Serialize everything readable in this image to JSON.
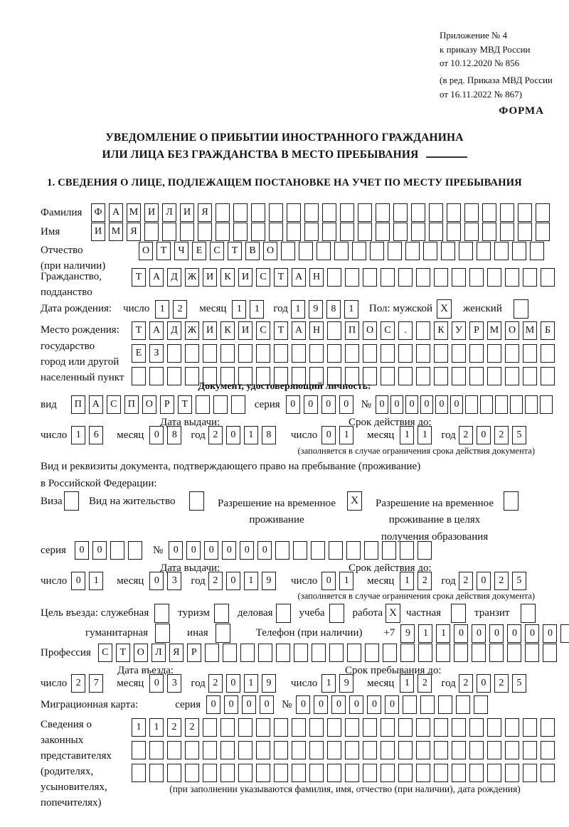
{
  "header": {
    "appendix": [
      "Приложение № 4",
      "к приказу МВД России",
      "от 10.12.2020 № 856"
    ],
    "amendment": [
      "(в ред. Приказа МВД России",
      "от 16.11.2022 № 867)"
    ],
    "form_label": "ФОРМА"
  },
  "title": {
    "line1": "УВЕДОМЛЕНИЕ О ПРИБЫТИИ ИНОСТРАННОГО ГРАЖДАНИНА",
    "line2": "ИЛИ ЛИЦА БЕЗ ГРАЖДАНСТВА В МЕСТО ПРЕБЫВАНИЯ"
  },
  "section1_heading": "1. СВЕДЕНИЯ О ЛИЦЕ, ПОДЛЕЖАЩЕМ ПОСТАНОВКЕ НА УЧЕТ ПО МЕСТУ ПРЕБЫВАНИЯ",
  "labels": {
    "surname": "Фамилия",
    "given_name": "Имя",
    "patronymic": "Отчество",
    "patronymic_note": "(при наличии)",
    "citizenship1": "Гражданство,",
    "citizenship2": "подданство",
    "birth_date": "Дата рождения:",
    "day": "число",
    "month": "месяц",
    "year": "год",
    "sex_male": "Пол: мужской",
    "sex_female": "женский",
    "birth_place": [
      "Место рождения:",
      "государство",
      "город или другой",
      "населенный пункт"
    ],
    "identity_doc_heading": "Документ, удостоверяющий личность:",
    "doc_type": "вид",
    "series": "серия",
    "number": "№",
    "issue_date": "Дата выдачи:",
    "valid_until": "Срок действия до:",
    "validity_note": "(заполняется в случае ограничения срока действия документа)",
    "residence_doc_line1": "Вид и реквизиты документа, подтверждающего право на пребывание (проживание)",
    "residence_doc_line2": "в Российской Федерации:",
    "entry_purpose": "Цель въезда: служебная",
    "phone": "Телефон (при наличии)",
    "phone_prefix": "+7",
    "profession": "Профессия",
    "entry_date": "Дата въезда:",
    "stay_until": "Срок пребывания до:",
    "migration_card": "Миграционная карта:",
    "representatives": [
      "Сведения о",
      "законных",
      "представителях",
      "(родителях,",
      "усыновителях,",
      "попечителях)"
    ],
    "representatives_note": "(при заполнении указываются фамилия, имя, отчество (при наличии), дата рождения)"
  },
  "person": {
    "surname": {
      "v": "ФАМИЛИЯ",
      "n": 26
    },
    "given_name": {
      "v": "ИМЯ",
      "n": 26
    },
    "patronymic": {
      "v": "ОТЧЕСТВО",
      "n": 23
    },
    "citizenship": {
      "v": "ТАДЖИКИСТАН",
      "n": 24
    },
    "birth_day": {
      "v": "12",
      "n": 2
    },
    "birth_month": {
      "v": "11",
      "n": 2
    },
    "birth_year": {
      "v": "1981",
      "n": 4
    },
    "sex_male_mark": "X",
    "sex_female_mark": "",
    "birth_place_row1": {
      "v": "ТАДЖИКИСТАН ПОС. КУРМОМБ",
      "n": 24
    },
    "birth_place_row2": {
      "v": "ЕЗ",
      "n": 24
    },
    "birth_place_row3": {
      "v": "",
      "n": 24
    }
  },
  "identity_doc": {
    "type": {
      "v": "ПАСПОРТ",
      "n": 10
    },
    "series": {
      "v": "0000",
      "n": 4
    },
    "number": {
      "v": "000000",
      "n": 12
    },
    "issue_day": {
      "v": "16",
      "n": 2
    },
    "issue_month": {
      "v": "08",
      "n": 2
    },
    "issue_year": {
      "v": "2018",
      "n": 4
    },
    "valid_day": {
      "v": "01",
      "n": 2
    },
    "valid_month": {
      "v": "11",
      "n": 2
    },
    "valid_year": {
      "v": "2025",
      "n": 4
    }
  },
  "residence_doc": {
    "visa_label": "Виза",
    "visa_mark": "",
    "residence_permit_label": "Вид на жительство",
    "residence_permit_mark": "",
    "temp_permit_line1": "Разрешение на временное",
    "temp_permit_line2": "проживание",
    "temp_permit_mark": "X",
    "edu_permit_line1": "Разрешение на временное",
    "edu_permit_line2": "проживание в целях",
    "edu_permit_line3": "получения образования",
    "edu_permit_mark": "",
    "series": {
      "v": "00",
      "n": 4
    },
    "number": {
      "v": "000000",
      "n": 15
    },
    "issue_day": {
      "v": "01",
      "n": 2
    },
    "issue_month": {
      "v": "03",
      "n": 2
    },
    "issue_year": {
      "v": "2019",
      "n": 4
    },
    "valid_day": {
      "v": "01",
      "n": 2
    },
    "valid_month": {
      "v": "12",
      "n": 2
    },
    "valid_year": {
      "v": "2025",
      "n": 4
    }
  },
  "entry_purpose": {
    "opt_tourism": "туризм",
    "opt_tourism_mark": "",
    "opt_business": "деловая",
    "opt_business_mark": "",
    "opt_study": "учеба",
    "opt_study_mark": "",
    "opt_work": "работа",
    "opt_work_mark": "X",
    "opt_private": "частная",
    "opt_private_mark": "",
    "opt_transit": "транзит",
    "opt_transit_mark": "",
    "opt_official_mark": "",
    "opt_humanitarian": "гуманитарная",
    "opt_humanitarian_mark": "",
    "opt_other": "иная",
    "opt_other_mark": "",
    "phone": {
      "v": "911000000",
      "n": 10
    }
  },
  "profession": {
    "v": "СТОЛЯР",
    "n": 26
  },
  "entry": {
    "entry_day": {
      "v": "27",
      "n": 2
    },
    "entry_month": {
      "v": "03",
      "n": 2
    },
    "entry_year": {
      "v": "2019",
      "n": 4
    },
    "stay_day": {
      "v": "19",
      "n": 2
    },
    "stay_month": {
      "v": "12",
      "n": 2
    },
    "stay_year": {
      "v": "2025",
      "n": 4
    }
  },
  "migration_card": {
    "series": {
      "v": "0000",
      "n": 4
    },
    "number": {
      "v": "000000",
      "n": 11
    }
  },
  "representatives": {
    "row1": {
      "v": "1122",
      "n": 24
    },
    "row2": {
      "v": "",
      "n": 24
    },
    "row3": {
      "v": "",
      "n": 24
    }
  }
}
